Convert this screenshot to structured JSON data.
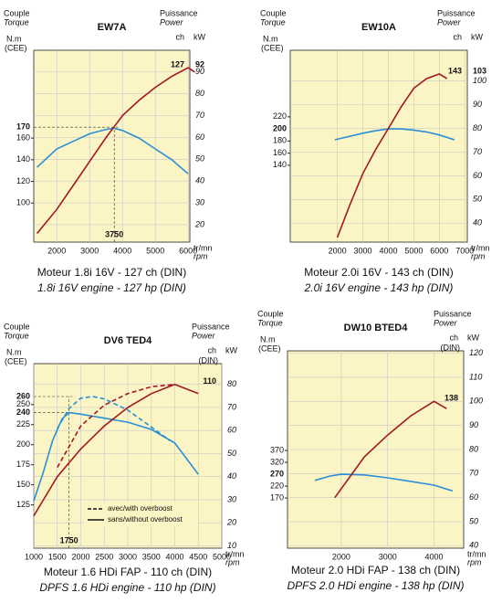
{
  "chart_data": [
    {
      "type": "line",
      "title": "EW7A",
      "torque_label": "Couple",
      "torque_label_en": "Torque",
      "torque_unit": "N.m",
      "torque_unit_std": "(CEE)",
      "power_label": "Puissance",
      "power_label_en": "Power",
      "power_unit_ch": "ch",
      "power_unit_kw": "kW",
      "x_unit": "tr/mn",
      "x_unit_en": "rpm",
      "caption": "Moteur 1.8i 16V - 127 ch (DIN)",
      "caption_en": "1.8i 16V engine - 127 hp (DIN)",
      "xlim": [
        1300,
        6050
      ],
      "xticks": [
        2000,
        3000,
        4000,
        5000,
        6000
      ],
      "ylim": [
        64,
        241
      ],
      "yticks": [
        100,
        120,
        140,
        160
      ],
      "y2lim": [
        12,
        100
      ],
      "y2ticks": [
        20,
        30,
        40,
        50,
        60,
        70,
        80,
        90
      ],
      "markers": {
        "y": [
          170
        ],
        "x": [
          3750
        ]
      },
      "peak": {
        "ch": 127,
        "kw": 92
      },
      "grid": true,
      "series": [
        {
          "color": "#2a8fd6",
          "dash": false,
          "x": [
            1400,
            2000,
            2500,
            3000,
            3500,
            3750,
            4000,
            4500,
            5000,
            5500,
            6000
          ],
          "values": [
            133,
            150,
            157,
            164,
            168,
            169,
            167,
            160,
            150,
            140,
            127
          ]
        },
        {
          "color": "#a01820",
          "dash": false,
          "axis": "y2",
          "x": [
            1400,
            2000,
            2500,
            3000,
            3500,
            4000,
            4500,
            5000,
            5500,
            6000,
            6200
          ],
          "values": [
            16,
            27,
            38,
            49,
            60,
            70,
            77,
            83,
            88,
            92,
            90
          ]
        }
      ]
    },
    {
      "type": "line",
      "title": "EW10A",
      "torque_label": "Couple",
      "torque_label_en": "Torque",
      "torque_unit": "N.m",
      "torque_unit_std": "(CEE)",
      "power_label": "Puissance",
      "power_label_en": "Power",
      "power_unit_ch": "ch",
      "power_unit_kw": "kW",
      "x_unit": "tr/mn",
      "x_unit_en": "rpm",
      "caption": "Moteur 2.0i 16V - 143 ch (DIN)",
      "caption_en": "2.0i 16V engine - 143 hp (DIN)",
      "xlim": [
        150,
        7100
      ],
      "xticks": [
        2000,
        3000,
        4000,
        5000,
        6000,
        7000
      ],
      "ylim": [
        13,
        330
      ],
      "yticks": [
        140,
        160,
        180,
        220
      ],
      "y2lim": [
        32,
        113
      ],
      "y2ticks": [
        40,
        50,
        60,
        70,
        80,
        90,
        100
      ],
      "markers": {
        "y": [
          200
        ],
        "x": []
      },
      "peak": {
        "ch": 143,
        "kw": 103
      },
      "grid": true,
      "series": [
        {
          "color": "#2a8fd6",
          "dash": false,
          "x": [
            1900,
            2500,
            3000,
            3500,
            4000,
            4500,
            5000,
            5500,
            6000,
            6600
          ],
          "values": [
            182,
            188,
            193,
            197,
            200,
            200,
            198,
            195,
            190,
            182
          ]
        },
        {
          "color": "#a01820",
          "dash": false,
          "axis": "y2",
          "x": [
            2000,
            2500,
            3000,
            3500,
            4000,
            4500,
            5000,
            5500,
            6000,
            6300
          ],
          "values": [
            34,
            48,
            61,
            71,
            80,
            89,
            97,
            101,
            103,
            101
          ]
        }
      ]
    },
    {
      "type": "line",
      "title": "DV6 TED4",
      "torque_label": "Couple",
      "torque_label_en": "Torque",
      "torque_unit": "N.m",
      "torque_unit_std": "(CEE)",
      "power_label": "Puissance",
      "power_label_en": "Power",
      "power_unit_ch": "ch",
      "power_unit_ch_std": "(DIN)",
      "power_unit_kw": "kW",
      "x_unit": "tr/mn",
      "x_unit_en": "rpm",
      "caption": "Moteur 1.6 HDi FAP - 110 ch (DIN)",
      "caption_en": "DPFS 1.6 HDi engine - 110 hp (DIN)",
      "xlim": [
        1000,
        5000
      ],
      "xticks": [
        1000,
        1500,
        2000,
        2500,
        3000,
        3500,
        4000,
        4500,
        5000
      ],
      "ylim": [
        71,
        301
      ],
      "yticks": [
        125,
        150,
        175,
        200,
        225,
        250
      ],
      "y2lim": [
        9,
        89
      ],
      "y2ticks": [
        10,
        20,
        30,
        40,
        50,
        60,
        70,
        80
      ],
      "markers": {
        "y": [
          260,
          240
        ],
        "x": [
          1750
        ]
      },
      "peak": {
        "ch": 110
      },
      "grid": true,
      "legend": [
        {
          "label": "avec/with overboost",
          "dash": true
        },
        {
          "label": "sans/without overboost",
          "dash": false
        }
      ],
      "series": [
        {
          "color": "#2a8fd6",
          "dash": false,
          "x": [
            1000,
            1200,
            1400,
            1600,
            1750,
            2000,
            2500,
            3000,
            3500,
            4000,
            4500
          ],
          "values": [
            130,
            165,
            205,
            232,
            240,
            238,
            233,
            228,
            219,
            202,
            163
          ]
        },
        {
          "color": "#2a8fd6",
          "dash": true,
          "x": [
            1500,
            1750,
            2000,
            2250,
            2500,
            3000,
            3500,
            3900
          ],
          "values": [
            220,
            245,
            258,
            260,
            257,
            243,
            222,
            205
          ]
        },
        {
          "color": "#a01820",
          "dash": false,
          "axis": "y2",
          "x": [
            1000,
            1500,
            2000,
            2500,
            3000,
            3500,
            4000,
            4500
          ],
          "values": [
            23,
            40,
            52,
            62,
            70,
            76,
            80,
            76
          ]
        },
        {
          "color": "#a01820",
          "dash": true,
          "axis": "y2",
          "x": [
            1500,
            2000,
            2500,
            3000,
            3500,
            4000
          ],
          "values": [
            44,
            62,
            71,
            76,
            79,
            80
          ]
        }
      ]
    },
    {
      "type": "line",
      "title": "DW10 BTED4",
      "torque_label": "Couple",
      "torque_label_en": "Torque",
      "torque_unit": "N.m",
      "torque_unit_std": "(CEE)",
      "power_label": "Puissance",
      "power_label_en": "Power",
      "power_unit_ch": "ch",
      "power_unit_ch_std": "(DIN)",
      "power_unit_kw": "kW",
      "x_unit": "tr/mn",
      "x_unit_en": "rpm",
      "caption": "Moteur 2.0 HDi FAP - 138 ch (DIN)",
      "caption_en": "DPFS 2.0 HDi engine - 138 hp (DIN)",
      "xlim": [
        840,
        4640
      ],
      "xticks": [
        2000,
        3000,
        4000
      ],
      "ylim": [
        -41,
        789
      ],
      "yticks": [
        170,
        220,
        320,
        370
      ],
      "y2lim": [
        39,
        121
      ],
      "y2ticks": [
        40,
        50,
        60,
        70,
        80,
        90,
        100,
        110,
        120
      ],
      "markers": {
        "y": [
          270
        ],
        "x": []
      },
      "peak": {
        "ch": 138
      },
      "grid": true,
      "series": [
        {
          "color": "#2a8fd6",
          "dash": false,
          "x": [
            1430,
            1750,
            2000,
            2500,
            3000,
            3500,
            4000,
            4400
          ],
          "values": [
            244,
            262,
            270,
            267,
            255,
            240,
            224,
            200
          ]
        },
        {
          "color": "#a01820",
          "dash": false,
          "axis": "y2",
          "x": [
            1860,
            2500,
            3000,
            3500,
            4000,
            4270
          ],
          "values": [
            60,
            77,
            86,
            94,
            100,
            97
          ]
        }
      ]
    }
  ]
}
